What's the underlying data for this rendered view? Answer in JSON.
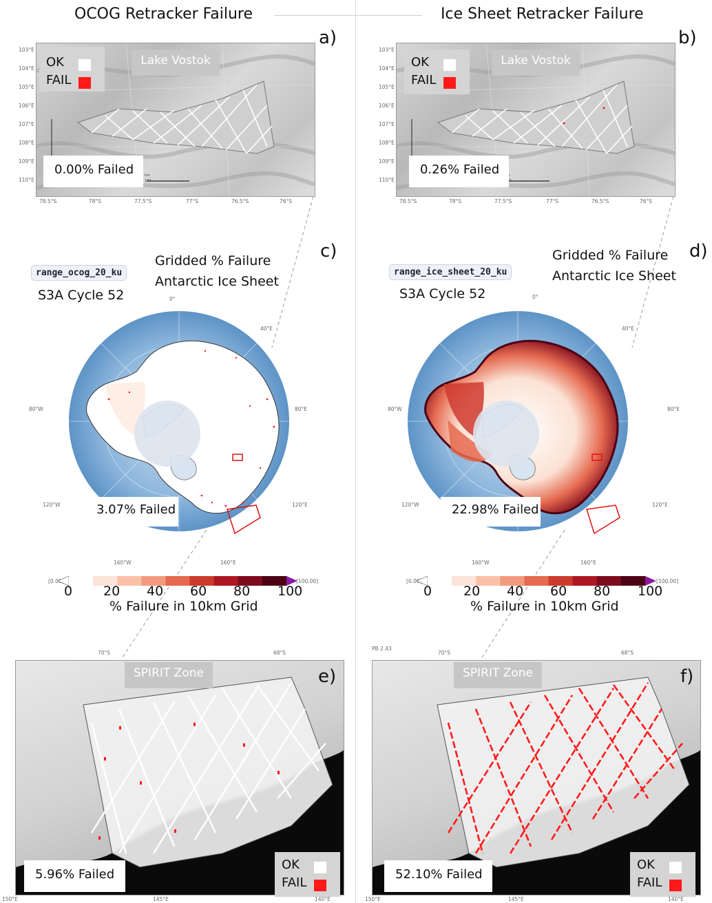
{
  "columns": [
    {
      "title": "OCOG Retracker Failure"
    },
    {
      "title": "Ice Sheet Retracker Failure"
    }
  ],
  "panels": {
    "a": {
      "letter": "a)",
      "region": "Lake Vostok",
      "failed": "0.00% Failed",
      "legend": {
        "ok": "OK",
        "fail": "FAIL"
      },
      "scale_unit": "km",
      "scale_value": "100"
    },
    "b": {
      "letter": "b)",
      "region": "Lake Vostok",
      "failed": "0.26% Failed",
      "legend": {
        "ok": "OK",
        "fail": "FAIL"
      },
      "scale_unit": "km",
      "scale_value": "100"
    },
    "c": {
      "letter": "c)",
      "variable": "range_ocog_20_ku",
      "cycle": "S3A Cycle 52",
      "title_line1": "Gridded % Failure",
      "title_line2": "Antarctic Ice Sheet",
      "failed": "3.07% Failed"
    },
    "d": {
      "letter": "d)",
      "variable": "range_ice_sheet_20_ku",
      "cycle": "S3A Cycle 52",
      "title_line1": "Gridded % Failure",
      "title_line2": "Antarctic Ice Sheet",
      "failed": "22.98% Failed"
    },
    "e": {
      "letter": "e)",
      "region": "SPIRIT Zone",
      "failed": "5.96% Failed",
      "legend": {
        "ok": "OK",
        "fail": "FAIL"
      }
    },
    "f": {
      "letter": "f)",
      "region": "SPIRIT Zone",
      "failed": "52.10% Failed",
      "legend": {
        "ok": "OK",
        "fail": "FAIL"
      },
      "corner_note": "PB 2.43"
    }
  },
  "vostok_ticks": {
    "y": [
      "103°E",
      "104°E",
      "105°E",
      "106°E",
      "107°E",
      "108°E",
      "109°E",
      "110°E"
    ],
    "x": [
      "78.5°S",
      "78°S",
      "77.5°S",
      "77°S",
      "76.5°S",
      "76°S"
    ]
  },
  "polar_labels": {
    "top": "0°",
    "ne": "40°E",
    "e": "80°E",
    "se": "120°E",
    "s": "160°E",
    "sw": "160°W",
    "w2": "120°W",
    "w": "80°W"
  },
  "colorbar": {
    "ticks": [
      "0",
      "20",
      "40",
      "60",
      "80",
      "100"
    ],
    "min_label": "[0.00]",
    "max_label": "[100.00]",
    "caption": "% Failure in 10km Grid",
    "colors": [
      "#ffffff",
      "#fde4d8",
      "#f9c2a8",
      "#f29a7d",
      "#e56a50",
      "#cf3a2f",
      "#ad1822",
      "#7e0a1e",
      "#4b0214"
    ],
    "extend_min": "#ffffff",
    "extend_max": "#8b1a9e"
  },
  "spirit_ticks": {
    "top": [
      "70°S",
      "68°S"
    ],
    "bottom": [
      "150°E",
      "145°E",
      "140°E"
    ]
  },
  "colors": {
    "fail": "#ff1a1a",
    "ocean": "#5d93c6",
    "ice": "#ffffff",
    "sea_ice": "#d8e4ef",
    "rock": "#0a0a0a"
  }
}
